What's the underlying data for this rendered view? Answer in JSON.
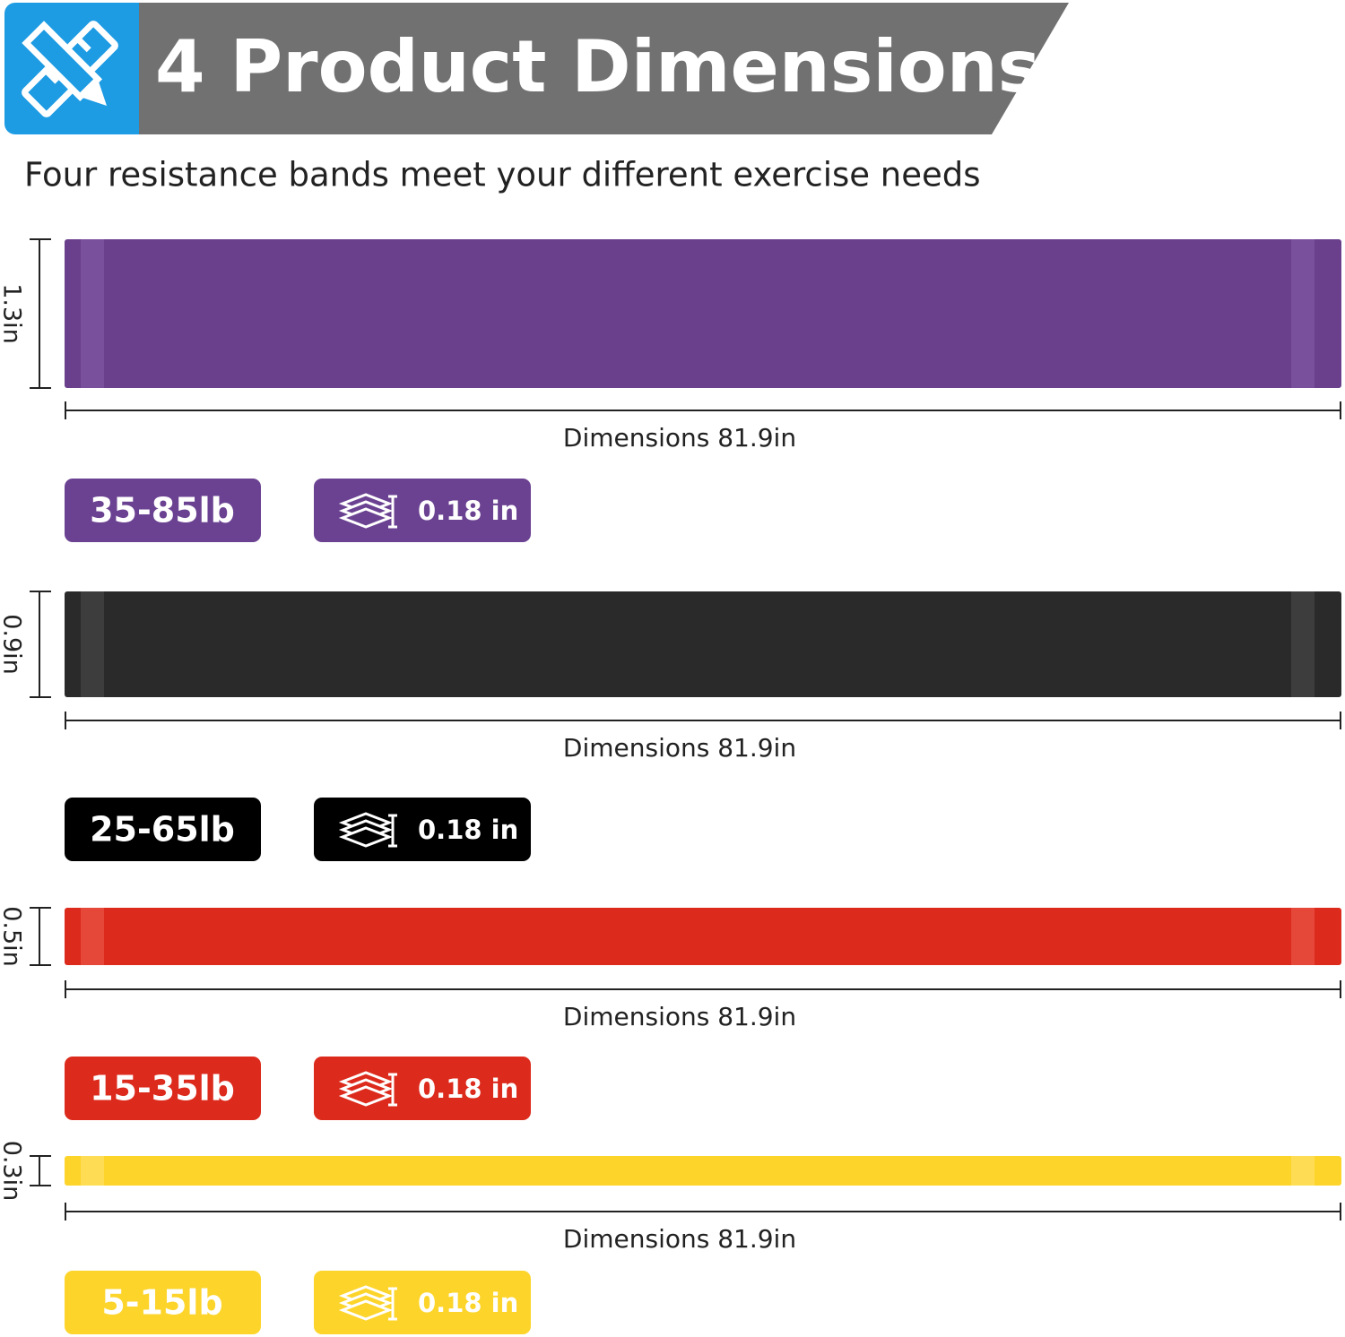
{
  "header": {
    "title": "4 Product Dimensions",
    "subtitle": "Four resistance bands meet your different exercise needs"
  },
  "bands": [
    {
      "width_label": "1.3in",
      "length_label": "Dimensions 81.9in",
      "resistance": "35-85lb",
      "thickness": "0.18 in"
    },
    {
      "width_label": "0.9in",
      "length_label": "Dimensions 81.9in",
      "resistance": "25-65lb",
      "thickness": "0.18 in"
    },
    {
      "width_label": "0.5in",
      "length_label": "Dimensions 81.9in",
      "resistance": "15-35lb",
      "thickness": "0.18 in"
    },
    {
      "width_label": "0.3in",
      "length_label": "Dimensions 81.9in",
      "resistance": "5-15lb",
      "thickness": "0.18 in"
    }
  ]
}
